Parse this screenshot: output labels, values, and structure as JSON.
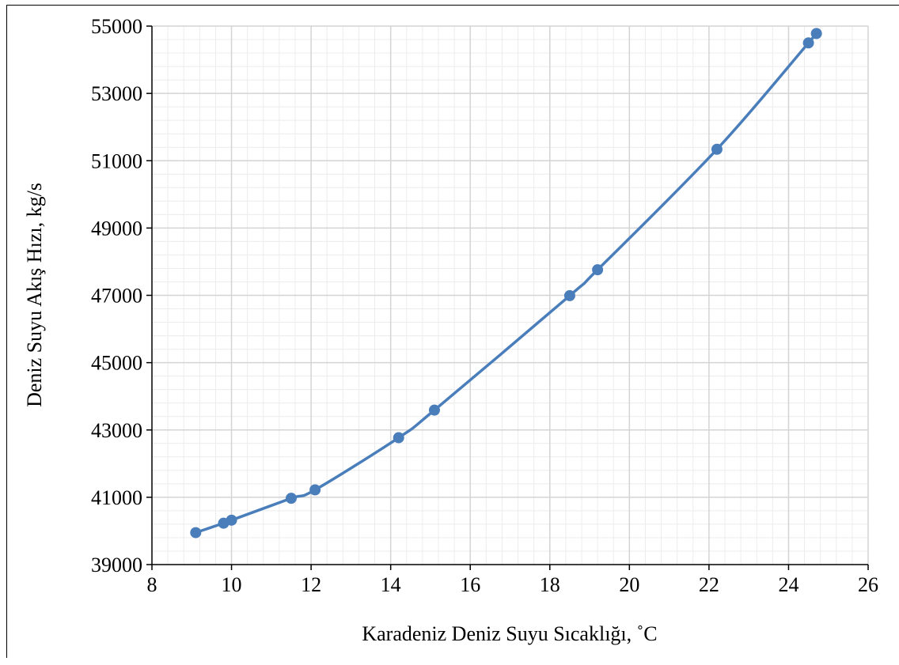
{
  "chart_data": {
    "type": "line",
    "title": "",
    "xlabel": "Karadeniz Deniz Suyu Sıcaklığı, ˚C",
    "ylabel": "Deniz Suyu Akış Hızı, kg/s",
    "xlim": [
      8,
      26
    ],
    "ylim": [
      39000,
      55000
    ],
    "x_major_ticks": [
      8,
      10,
      12,
      14,
      16,
      18,
      20,
      22,
      24,
      26
    ],
    "y_major_ticks": [
      39000,
      41000,
      43000,
      45000,
      47000,
      49000,
      51000,
      53000,
      55000
    ],
    "x_tick_labels": [
      "8",
      "10",
      "12",
      "14",
      "16",
      "18",
      "20",
      "22",
      "24",
      "26"
    ],
    "y_tick_labels": [
      "39000",
      "41000",
      "43000",
      "45000",
      "47000",
      "49000",
      "51000",
      "53000",
      "55000"
    ],
    "grid": true,
    "minor_grid": true,
    "legend": "none",
    "series": [
      {
        "color": "#4a7ebb",
        "marker": "circle",
        "smooth": true,
        "x": [
          9.1,
          9.8,
          10.0,
          11.5,
          12.1,
          14.2,
          15.1,
          18.5,
          19.2,
          22.2,
          24.5,
          24.7
        ],
        "y": [
          39950,
          40230,
          40320,
          40970,
          41220,
          42770,
          43590,
          46990,
          47760,
          51340,
          54500,
          54780
        ]
      }
    ]
  }
}
